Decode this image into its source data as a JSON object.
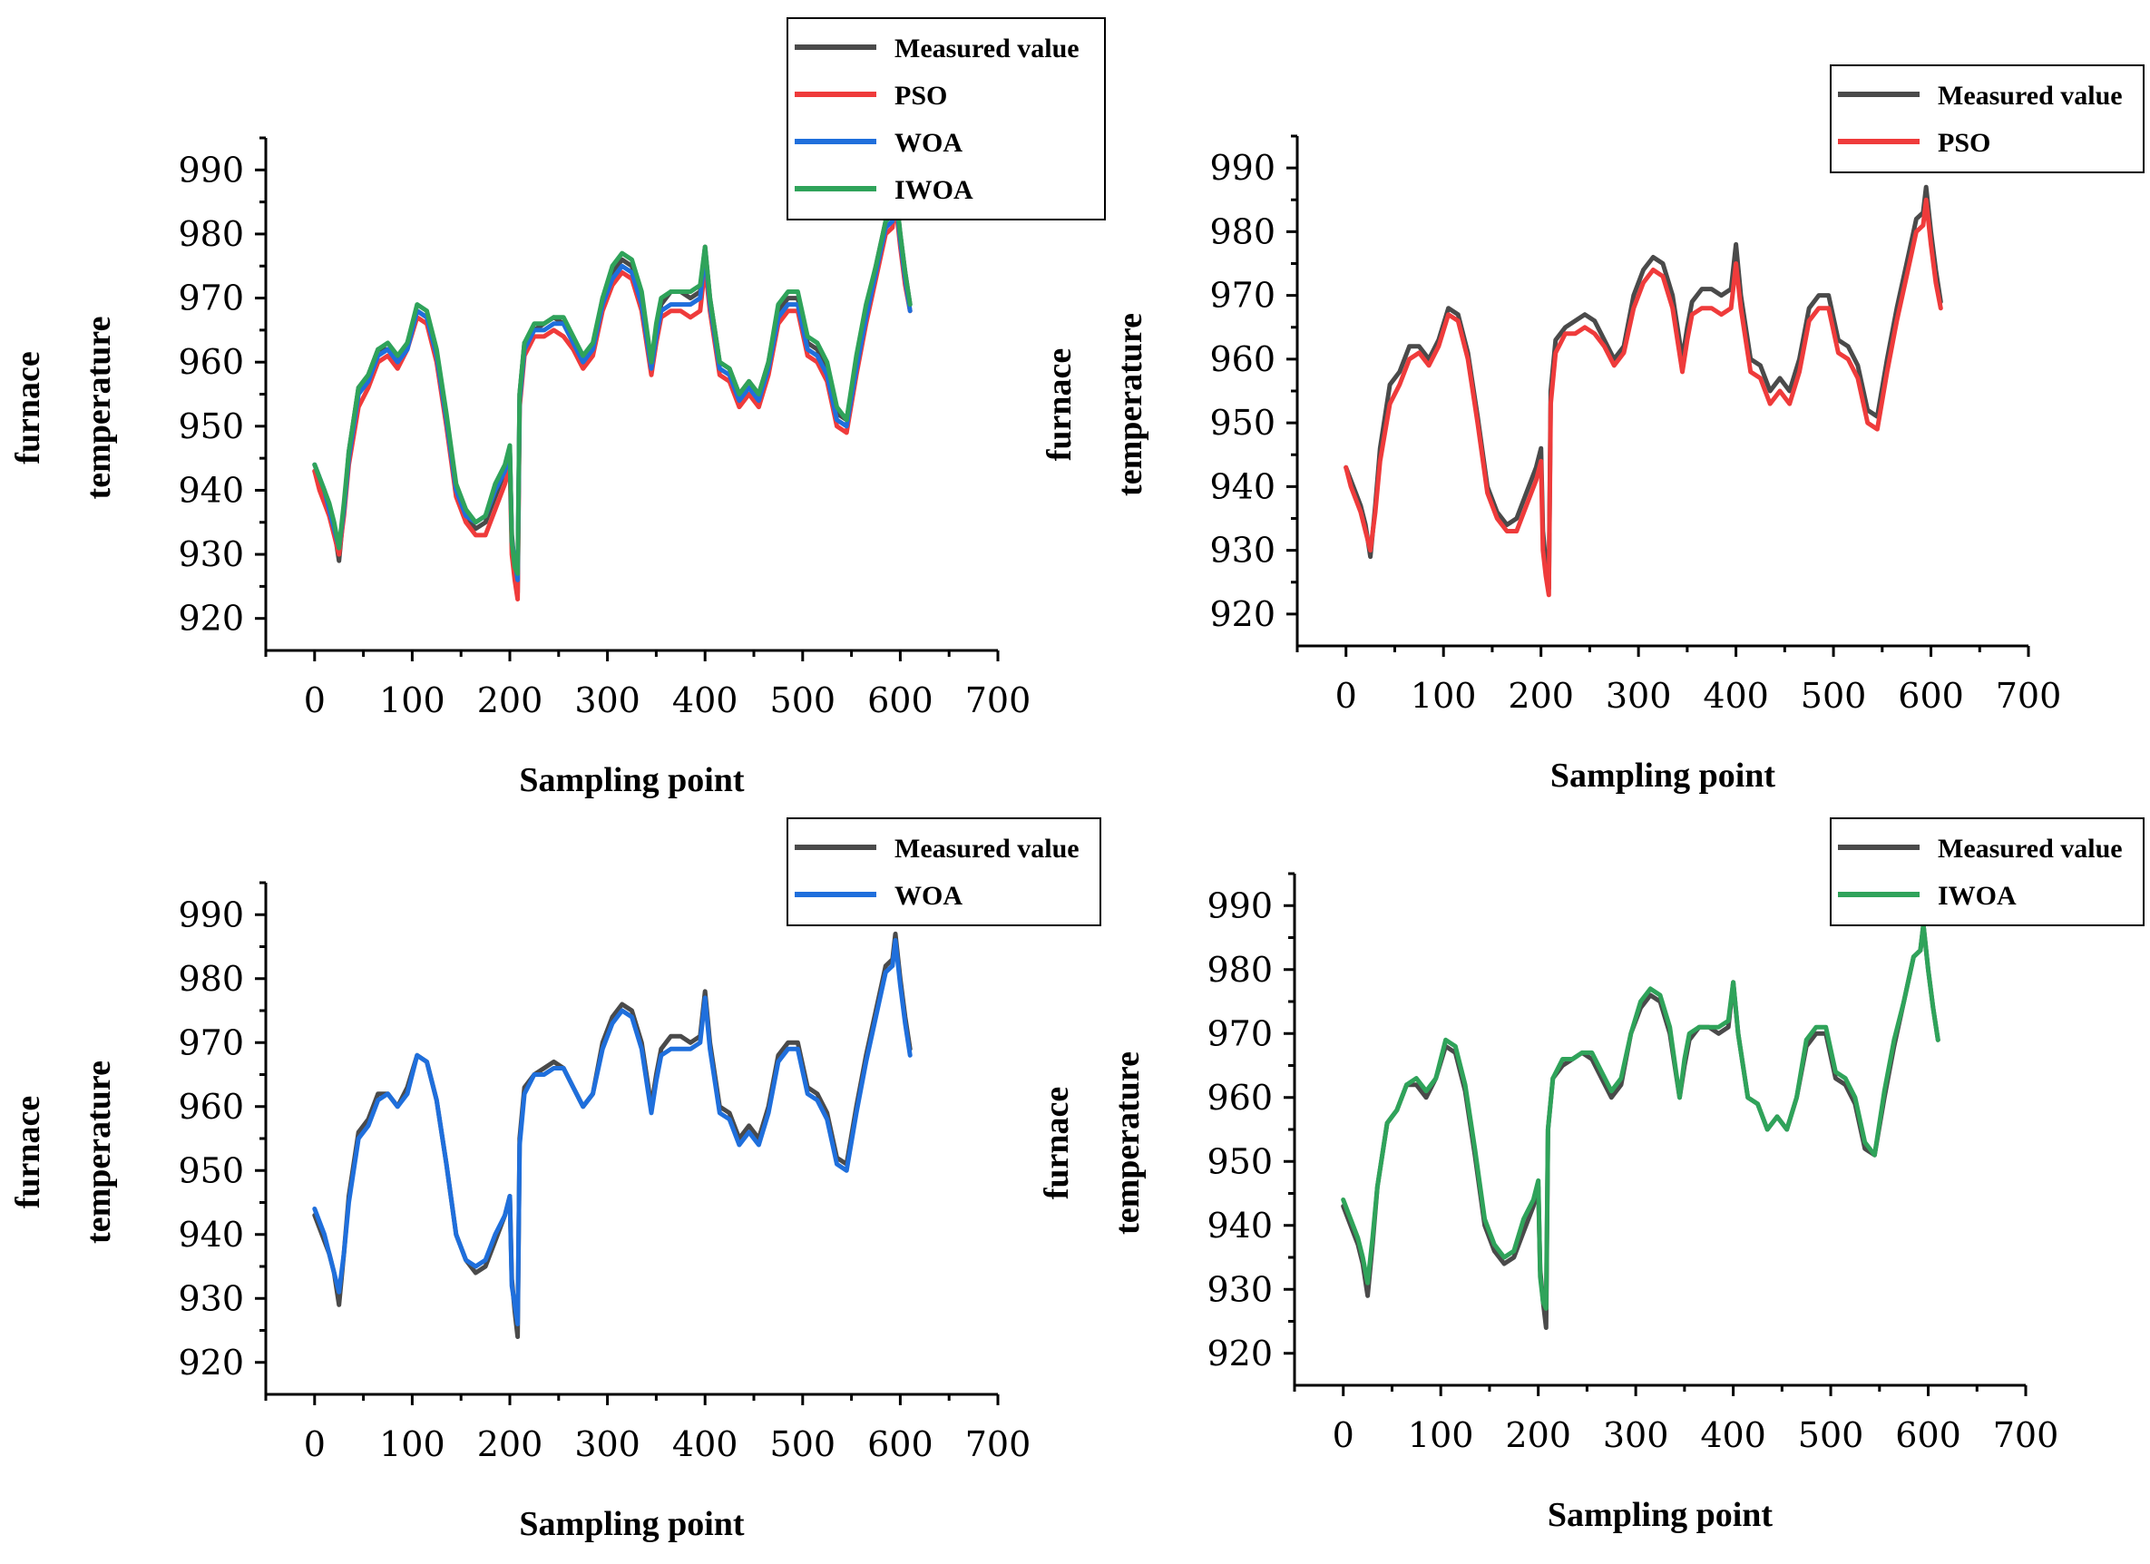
{
  "colors": {
    "measured": "#4a4a4a",
    "PSO": "#ef3b3b",
    "WOA": "#1f6fdc",
    "IWOA": "#2fa35a"
  },
  "chart_data": [
    {
      "type": "line",
      "panel": "top-left",
      "xlabel": "Sampling point",
      "ylabel_line1": "furnace",
      "ylabel_line2": "temperature",
      "xlim": [
        -50,
        700
      ],
      "ylim": [
        915,
        995
      ],
      "xticks": [
        "0",
        "100",
        "200",
        "300",
        "400",
        "500",
        "600",
        "700"
      ],
      "yticks": [
        "920",
        "930",
        "940",
        "950",
        "960",
        "970",
        "980",
        "990"
      ],
      "legend": [
        "Measured  value",
        "PSO",
        "WOA",
        "IWOA"
      ],
      "legend_position": "top-right",
      "series_names": [
        "Measured value",
        "PSO",
        "WOA",
        "IWOA"
      ]
    },
    {
      "type": "line",
      "panel": "top-right",
      "xlabel": "Sampling point",
      "ylabel_line1": "furnace",
      "ylabel_line2": "temperature",
      "xlim": [
        -50,
        700
      ],
      "ylim": [
        915,
        995
      ],
      "xticks": [
        "0",
        "100",
        "200",
        "300",
        "400",
        "500",
        "600",
        "700"
      ],
      "yticks": [
        "920",
        "930",
        "940",
        "950",
        "960",
        "970",
        "980",
        "990"
      ],
      "legend": [
        "Measured value",
        "PSO"
      ],
      "legend_position": "top-right",
      "series_names": [
        "Measured value",
        "PSO"
      ]
    },
    {
      "type": "line",
      "panel": "bottom-left",
      "xlabel": "Sampling point",
      "ylabel_line1": "furnace",
      "ylabel_line2": "temperature",
      "xlim": [
        -50,
        700
      ],
      "ylim": [
        915,
        995
      ],
      "xticks": [
        "0",
        "100",
        "200",
        "300",
        "400",
        "500",
        "600",
        "700"
      ],
      "yticks": [
        "920",
        "930",
        "940",
        "950",
        "960",
        "970",
        "980",
        "990"
      ],
      "legend": [
        "Measured value",
        "WOA"
      ],
      "legend_position": "top-right",
      "series_names": [
        "Measured value",
        "WOA"
      ]
    },
    {
      "type": "line",
      "panel": "bottom-right",
      "xlabel": "Sampling point",
      "ylabel_line1": "furnace",
      "ylabel_line2": "temperature",
      "xlim": [
        -50,
        700
      ],
      "ylim": [
        915,
        995
      ],
      "xticks": [
        "0",
        "100",
        "200",
        "300",
        "400",
        "500",
        "600",
        "700"
      ],
      "yticks": [
        "920",
        "930",
        "940",
        "950",
        "960",
        "970",
        "980",
        "990"
      ],
      "legend": [
        "Measured value",
        "IWOA"
      ],
      "legend_position": "top-right",
      "series_names": [
        "Measured value",
        "IWOA"
      ]
    }
  ],
  "series_points": {
    "x": [
      0,
      5,
      10,
      15,
      20,
      25,
      30,
      35,
      45,
      55,
      65,
      75,
      85,
      95,
      105,
      115,
      125,
      135,
      145,
      155,
      165,
      175,
      185,
      195,
      200,
      202,
      205,
      208,
      210,
      215,
      225,
      235,
      245,
      255,
      265,
      275,
      285,
      295,
      305,
      315,
      325,
      335,
      345,
      350,
      355,
      365,
      375,
      385,
      395,
      400,
      405,
      415,
      425,
      435,
      445,
      455,
      465,
      475,
      485,
      495,
      505,
      515,
      525,
      535,
      545,
      555,
      565,
      575,
      585,
      592,
      595,
      600,
      605,
      610
    ],
    "Measured value": [
      943,
      941,
      939,
      937,
      934,
      929,
      937,
      946,
      956,
      958,
      962,
      962,
      960,
      963,
      968,
      967,
      961,
      951,
      940,
      936,
      934,
      935,
      939,
      943,
      946,
      933,
      928,
      924,
      955,
      963,
      965,
      966,
      967,
      966,
      963,
      960,
      962,
      970,
      974,
      976,
      975,
      970,
      960,
      965,
      969,
      971,
      971,
      970,
      971,
      978,
      970,
      960,
      959,
      955,
      957,
      955,
      960,
      968,
      970,
      970,
      963,
      962,
      959,
      952,
      951,
      960,
      968,
      975,
      982,
      983,
      987,
      980,
      974,
      969
    ],
    "PSO": [
      943,
      940,
      938,
      936,
      933,
      930,
      936,
      944,
      953,
      956,
      960,
      961,
      959,
      962,
      967,
      966,
      960,
      950,
      939,
      935,
      933,
      933,
      937,
      941,
      944,
      930,
      926,
      923,
      953,
      961,
      964,
      964,
      965,
      964,
      962,
      959,
      961,
      968,
      972,
      974,
      973,
      968,
      958,
      963,
      967,
      968,
      968,
      967,
      968,
      975,
      968,
      958,
      957,
      953,
      955,
      953,
      958,
      966,
      968,
      968,
      961,
      960,
      957,
      950,
      949,
      958,
      966,
      973,
      980,
      981,
      985,
      978,
      972,
      968
    ],
    "WOA": [
      944,
      942,
      940,
      937,
      934,
      931,
      937,
      945,
      955,
      957,
      961,
      962,
      960,
      962,
      968,
      967,
      961,
      951,
      940,
      936,
      935,
      936,
      940,
      943,
      946,
      932,
      929,
      926,
      954,
      962,
      965,
      965,
      966,
      966,
      963,
      960,
      962,
      969,
      973,
      975,
      974,
      969,
      959,
      964,
      968,
      969,
      969,
      969,
      970,
      977,
      969,
      959,
      958,
      954,
      956,
      954,
      959,
      967,
      969,
      969,
      962,
      961,
      958,
      951,
      950,
      959,
      967,
      974,
      981,
      982,
      986,
      979,
      973,
      968
    ],
    "IWOA": [
      944,
      942,
      940,
      938,
      935,
      931,
      938,
      946,
      956,
      958,
      962,
      963,
      961,
      963,
      969,
      968,
      962,
      952,
      941,
      937,
      935,
      936,
      941,
      944,
      947,
      932,
      928,
      927,
      955,
      963,
      966,
      966,
      967,
      967,
      964,
      961,
      963,
      970,
      975,
      977,
      976,
      971,
      960,
      966,
      970,
      971,
      971,
      971,
      972,
      978,
      970,
      960,
      959,
      955,
      957,
      955,
      960,
      969,
      971,
      971,
      964,
      963,
      960,
      953,
      951,
      961,
      969,
      975,
      982,
      983,
      987,
      980,
      974,
      969
    ]
  }
}
